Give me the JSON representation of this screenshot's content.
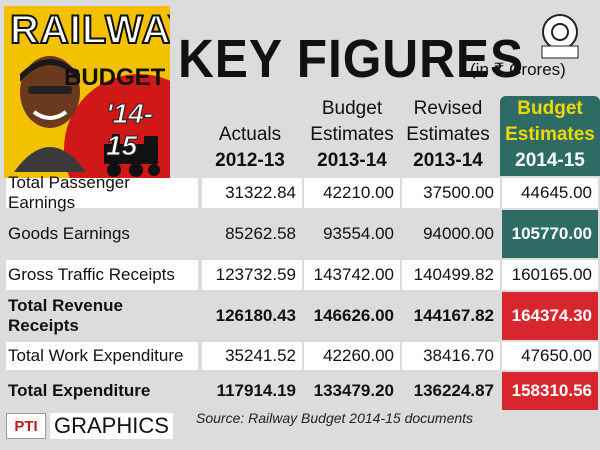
{
  "logo": {
    "line1": "RAILWAY",
    "line2": "BUDGET",
    "line3": "'14-15"
  },
  "emblem": {
    "text": "2014-15"
  },
  "header": {
    "title": "KEY FIGURES",
    "units": "(in ₹ Crores)"
  },
  "columns": [
    {
      "label_line1": "",
      "label_line2": "Actuals",
      "year": "2012-13"
    },
    {
      "label_line1": "Budget",
      "label_line2": "Estimates",
      "year": "2013-14"
    },
    {
      "label_line1": "Revised",
      "label_line2": "Estimates",
      "year": "2013-14"
    },
    {
      "label_line1": "Budget",
      "label_line2": "Estimates",
      "year": "2014-15"
    }
  ],
  "rows": [
    {
      "label": "Total Passenger Earnings",
      "values": [
        "31322.84",
        "42210.00",
        "37500.00",
        "44645.00"
      ]
    },
    {
      "label": "Goods Earnings",
      "values": [
        "85262.58",
        "93554.00",
        "94000.00",
        "105770.00"
      ]
    },
    {
      "label": "Gross Traffic Receipts",
      "values": [
        "123732.59",
        "143742.00",
        "140499.82",
        "160165.00"
      ]
    },
    {
      "label": "Total Revenue Receipts",
      "values": [
        "126180.43",
        "146626.00",
        "144167.82",
        "164374.30"
      ]
    },
    {
      "label": "Total Work Expenditure",
      "values": [
        "35241.52",
        "42260.00",
        "38416.70",
        "47650.00"
      ]
    },
    {
      "label": "Total Expenditure",
      "values": [
        "117914.19",
        "133479.20",
        "136224.87",
        "158310.56"
      ]
    }
  ],
  "footer": {
    "pti_logo": "PTI",
    "graphics": "GRAPHICS",
    "source": "Source: Railway Budget 2014-15 documents"
  },
  "colors": {
    "highlight_green": "#2e6b64",
    "highlight_red": "#d7262e",
    "highlight_yellow_text": "#f2d700"
  }
}
